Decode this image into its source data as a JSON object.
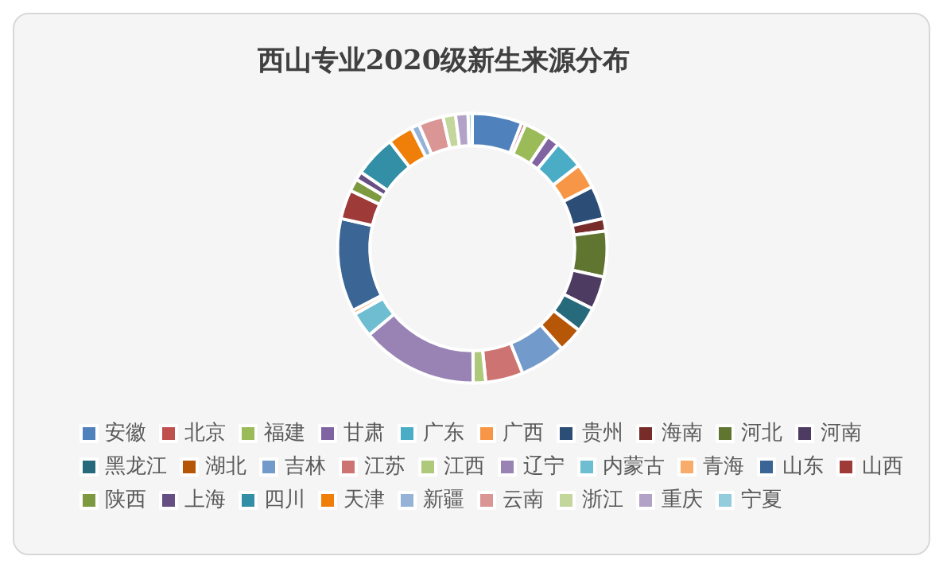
{
  "chart_data": {
    "type": "donut",
    "title": "西山专业2020级新生来源分布",
    "legend": "bottom",
    "categories": [
      "安徽",
      "北京",
      "福建",
      "甘肃",
      "广东",
      "广西",
      "贵州",
      "海南",
      "河北",
      "河南",
      "黑龙江",
      "湖北",
      "吉林",
      "江苏",
      "江西",
      "辽宁",
      "内蒙古",
      "青海",
      "山东",
      "山西",
      "陕西",
      "上海",
      "四川",
      "天津",
      "新疆",
      "云南",
      "浙江",
      "重庆",
      "宁夏"
    ],
    "values": [
      6,
      0.5,
      3,
      1.5,
      3.5,
      3,
      4,
      1.5,
      5.5,
      4,
      3,
      3,
      5.5,
      4.5,
      1.5,
      14,
      3,
      0.5,
      11.2,
      3.5,
      1.5,
      1,
      5,
      3,
      1,
      3,
      1.5,
      1.5,
      0.5
    ],
    "colors": [
      "#4f81bd",
      "#c0504d",
      "#9bbb59",
      "#8064a2",
      "#4bacc6",
      "#f79646",
      "#2c4d75",
      "#772c2a",
      "#5f7530",
      "#4d3b62",
      "#276a7c",
      "#b65708",
      "#729aca",
      "#cd7371",
      "#afc97a",
      "#9983b5",
      "#6fbdd1",
      "#f9ab6b",
      "#3a6595",
      "#9e3b38",
      "#7e9a40",
      "#664f83",
      "#338fa5",
      "#f07f09",
      "#95b3d7",
      "#d99694",
      "#c3d69b",
      "#b3a2c7",
      "#93cddd"
    ]
  }
}
